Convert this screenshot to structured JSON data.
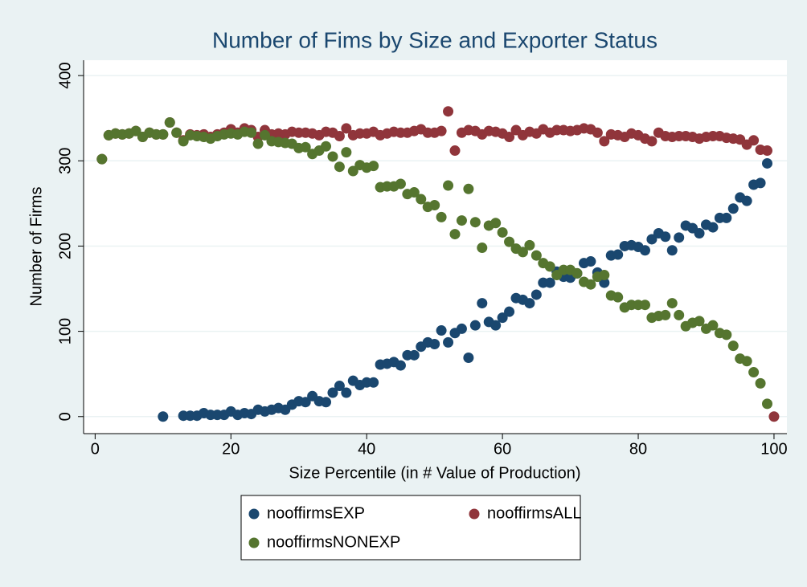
{
  "chart_data": {
    "type": "scatter",
    "title": "Number of Fims by Size and Exporter Status",
    "xlabel": "Size Percentile (in # Value of Production)",
    "ylabel": "Number of Firms",
    "xlim": [
      -1.7,
      101.9
    ],
    "xticks": [
      0,
      20,
      40,
      60,
      80,
      100
    ],
    "ylim": [
      -20,
      418
    ],
    "yticks": [
      0,
      100,
      200,
      300,
      400
    ],
    "grid": true,
    "legend": "bottom",
    "x": [
      1,
      2,
      3,
      4,
      5,
      6,
      7,
      8,
      9,
      10,
      11,
      12,
      13,
      14,
      15,
      16,
      17,
      18,
      19,
      20,
      21,
      22,
      23,
      24,
      25,
      26,
      27,
      28,
      29,
      30,
      31,
      32,
      33,
      34,
      35,
      36,
      37,
      38,
      39,
      40,
      41,
      42,
      43,
      44,
      45,
      46,
      47,
      48,
      49,
      50,
      51,
      52,
      53,
      54,
      55,
      56,
      57,
      58,
      59,
      60,
      61,
      62,
      63,
      64,
      65,
      66,
      67,
      68,
      69,
      70,
      71,
      72,
      73,
      74,
      75,
      76,
      77,
      78,
      79,
      80,
      81,
      82,
      83,
      84,
      85,
      86,
      87,
      88,
      89,
      90,
      91,
      92,
      93,
      94,
      95,
      96,
      97,
      98,
      99,
      100
    ],
    "series": [
      {
        "name": "nooffirmsEXP",
        "color": "#1a476f",
        "values": [
          null,
          null,
          null,
          null,
          null,
          null,
          null,
          null,
          null,
          0,
          null,
          null,
          1,
          1,
          1,
          4,
          2,
          2,
          2,
          6,
          2,
          4,
          3,
          8,
          6,
          8,
          10,
          8,
          14,
          18,
          17,
          24,
          18,
          17,
          28,
          36,
          28,
          42,
          37,
          40,
          40,
          61,
          62,
          64,
          60,
          72,
          72,
          82,
          87,
          85,
          101,
          87,
          98,
          103,
          69,
          107,
          133,
          111,
          107,
          116,
          123,
          139,
          137,
          133,
          143,
          157,
          157,
          170,
          164,
          163,
          168,
          180,
          182,
          169,
          157,
          189,
          190,
          200,
          201,
          199,
          195,
          208,
          215,
          211,
          195,
          210,
          224,
          221,
          215,
          225,
          222,
          233,
          233,
          244,
          257,
          253,
          272,
          274,
          297,
          null
        ]
      },
      {
        "name": "nooffirmsALL",
        "color": "#90353b",
        "values": [
          302,
          330,
          332,
          331,
          332,
          335,
          328,
          333,
          331,
          331,
          345,
          333,
          324,
          331,
          330,
          331,
          328,
          331,
          333,
          337,
          333,
          338,
          336,
          328,
          336,
          331,
          332,
          331,
          334,
          333,
          333,
          332,
          330,
          334,
          333,
          329,
          338,
          330,
          332,
          332,
          334,
          330,
          332,
          334,
          333,
          333,
          335,
          337,
          333,
          333,
          335,
          358,
          312,
          333,
          336,
          335,
          331,
          335,
          334,
          332,
          328,
          336,
          330,
          334,
          332,
          337,
          333,
          336,
          336,
          335,
          336,
          338,
          337,
          333,
          323,
          331,
          330,
          328,
          332,
          330,
          326,
          323,
          333,
          329,
          328,
          329,
          329,
          328,
          326,
          328,
          329,
          329,
          327,
          326,
          325,
          319,
          324,
          313,
          312,
          0
        ]
      },
      {
        "name": "nooffirmsNONEXP",
        "color": "#55752f",
        "values": [
          302,
          330,
          332,
          331,
          332,
          335,
          328,
          333,
          331,
          331,
          345,
          333,
          323,
          330,
          329,
          328,
          326,
          329,
          331,
          332,
          331,
          334,
          333,
          320,
          330,
          323,
          322,
          321,
          320,
          315,
          316,
          308,
          312,
          317,
          305,
          293,
          310,
          288,
          295,
          292,
          294,
          269,
          270,
          270,
          273,
          261,
          263,
          255,
          246,
          248,
          234,
          271,
          214,
          230,
          267,
          228,
          198,
          224,
          227,
          216,
          205,
          197,
          193,
          201,
          189,
          180,
          176,
          166,
          172,
          172,
          168,
          158,
          155,
          164,
          166,
          142,
          140,
          128,
          131,
          131,
          131,
          116,
          118,
          119,
          133,
          119,
          106,
          110,
          112,
          103,
          107,
          98,
          96,
          83,
          68,
          65,
          52,
          39,
          15,
          null
        ]
      }
    ]
  }
}
